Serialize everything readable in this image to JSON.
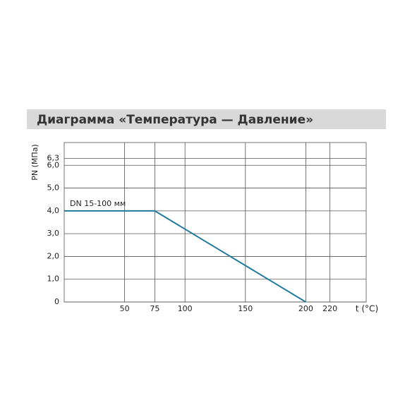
{
  "chart_data": {
    "type": "line",
    "title": "Диаграмма «Температура — Давление»",
    "x_label": "t (°C)",
    "y_label": "PN (МПа)",
    "xlim": [
      0,
      250
    ],
    "xticks": [
      50,
      75,
      100,
      150,
      200,
      220
    ],
    "ylim": [
      0,
      7
    ],
    "yticks": [
      0,
      {
        "value": 1,
        "label": "1,0"
      },
      {
        "value": 2,
        "label": "2,0"
      },
      {
        "value": 3,
        "label": "3,0"
      },
      {
        "value": 4,
        "label": "4,0"
      },
      {
        "value": 5,
        "label": "5,0"
      },
      {
        "value": 6,
        "label": "6,0"
      },
      {
        "value": 6.3,
        "label": "6,3"
      }
    ],
    "grid": true,
    "x": [
      0,
      75,
      200
    ],
    "series": [
      {
        "name": "DN 15-100 мм",
        "color": "#1f7a9c",
        "values": [
          4,
          4,
          0
        ]
      }
    ]
  }
}
